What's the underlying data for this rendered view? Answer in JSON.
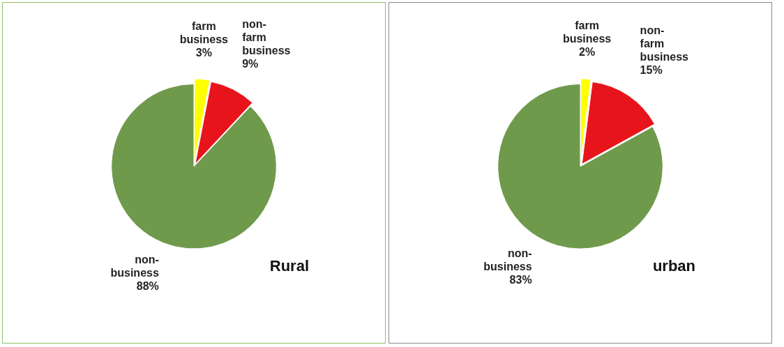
{
  "chart_data": [
    {
      "type": "pie",
      "title": "Rural",
      "categories": [
        "farm business",
        "non-farm business",
        "non-business"
      ],
      "values": [
        3,
        9,
        88
      ],
      "value_labels": [
        "3%",
        "9%",
        "88%"
      ],
      "colors": [
        "#ffff00",
        "#e8141b",
        "#6f9a4c"
      ],
      "data_labels": true
    },
    {
      "type": "pie",
      "title": "urban",
      "categories": [
        "farm business",
        "non-farm business",
        "non-business"
      ],
      "values": [
        2,
        15,
        83
      ],
      "value_labels": [
        "2%",
        "15%",
        "83%"
      ],
      "colors": [
        "#ffff00",
        "#e8141b",
        "#6f9a4c"
      ],
      "data_labels": true
    }
  ]
}
